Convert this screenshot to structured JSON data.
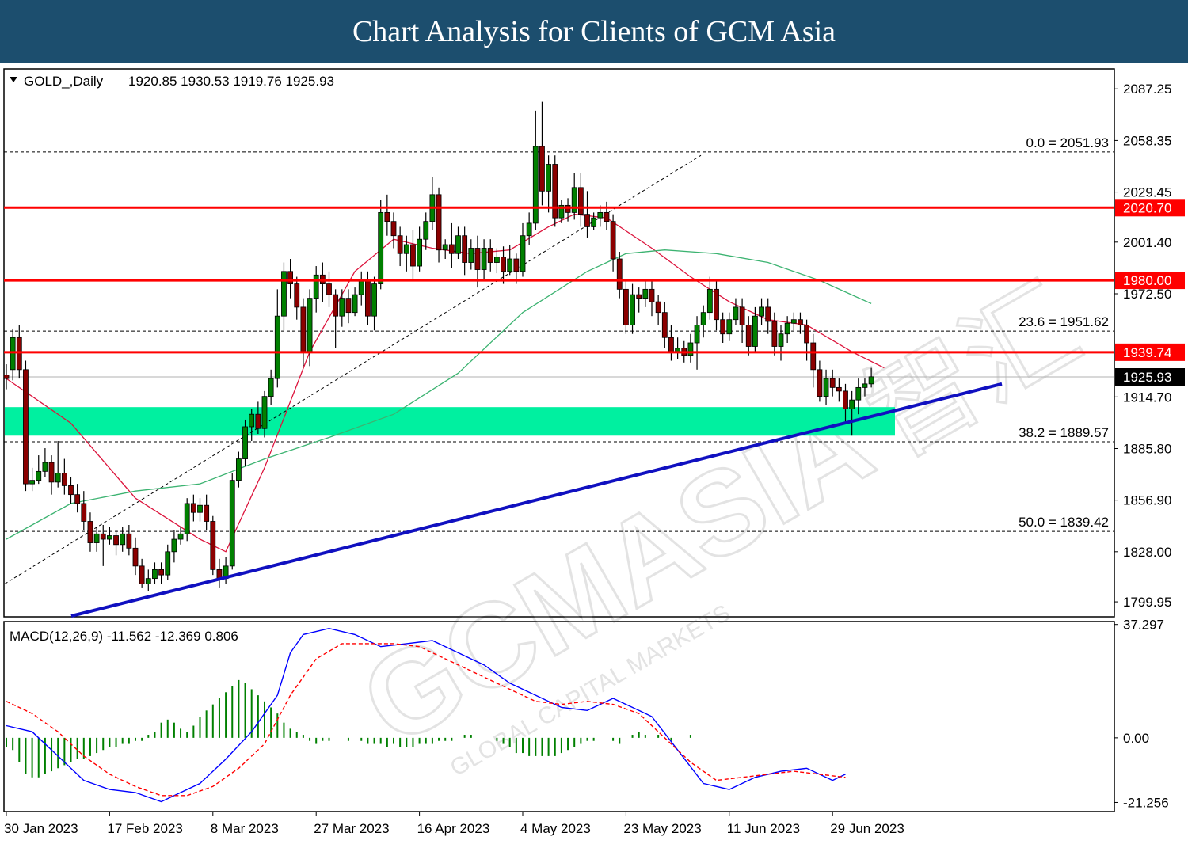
{
  "banner": {
    "title": "Chart Analysis for Clients of GCM Asia"
  },
  "watermark": {
    "brand": "GCMASIA",
    "chinese": "智汇",
    "tagline": "GLOBAL CAPITAL MARKETS"
  },
  "colors": {
    "banner": "#1c4e6e",
    "bull": "#008000",
    "bear": "#8b0000",
    "level": "#ff0000",
    "zone": "#00f0a0",
    "trend": "#1010c0",
    "ma_fast": "#dc143c",
    "ma_slow": "#3cb371",
    "macd": "#0000ff",
    "signal": "#ff0000",
    "hist": "#008000"
  },
  "main_header": {
    "symbol": "GOLD_,Daily",
    "ohlc": "1920.85 1930.53 1919.76 1925.93"
  },
  "chart_data": [
    {
      "type": "candlestick",
      "title": "GOLD_,Daily",
      "ylim": [
        1792,
        2098
      ],
      "y_ticks": [
        "2087.25",
        "2058.35",
        "2029.45",
        "2001.40",
        "1972.50",
        "1914.70",
        "1885.80",
        "1856.90",
        "1828.00",
        "1799.95"
      ],
      "x_labels": [
        "30 Jan 2023",
        "17 Feb 2023",
        "8 Mar 2023",
        "27 Mar 2023",
        "16 Apr 2023",
        "4 May 2023",
        "23 May 2023",
        "11 Jun 2023",
        "29 Jun 2023"
      ],
      "levels": [
        {
          "value": 2020.7,
          "label": "2020.70"
        },
        {
          "value": 1980.0,
          "label": "1980.00"
        },
        {
          "value": 1939.74,
          "label": "1939.74"
        }
      ],
      "current_price": {
        "value": 1925.93,
        "label": "1925.93"
      },
      "fibonacci": [
        {
          "value": 2051.93,
          "label": "0.0 = 2051.93"
        },
        {
          "value": 1951.62,
          "label": "23.6 = 1951.62"
        },
        {
          "value": 1889.57,
          "label": "38.2 = 1889.57"
        },
        {
          "value": 1839.42,
          "label": "50.0 = 1839.42"
        }
      ],
      "support_zone": [
        1893,
        1909
      ],
      "candles": [
        [
          1927,
          1925,
          1933,
          1919
        ],
        [
          1930,
          1948,
          1953,
          1924
        ],
        [
          1948,
          1930,
          1955,
          1925
        ],
        [
          1930,
          1866,
          1935,
          1862
        ],
        [
          1866,
          1868,
          1875,
          1862
        ],
        [
          1868,
          1873,
          1882,
          1866
        ],
        [
          1873,
          1878,
          1886,
          1870
        ],
        [
          1878,
          1867,
          1882,
          1860
        ],
        [
          1867,
          1872,
          1890,
          1864
        ],
        [
          1872,
          1865,
          1880,
          1860
        ],
        [
          1865,
          1860,
          1870,
          1855
        ],
        [
          1860,
          1855,
          1866,
          1850
        ],
        [
          1855,
          1845,
          1862,
          1840
        ],
        [
          1845,
          1833,
          1850,
          1828
        ],
        [
          1833,
          1838,
          1842,
          1828
        ],
        [
          1838,
          1835,
          1843,
          1820
        ],
        [
          1835,
          1837,
          1842,
          1832
        ],
        [
          1837,
          1832,
          1840,
          1826
        ],
        [
          1832,
          1838,
          1842,
          1828
        ],
        [
          1838,
          1830,
          1843,
          1826
        ],
        [
          1830,
          1820,
          1836,
          1815
        ],
        [
          1820,
          1810,
          1824,
          1808
        ],
        [
          1810,
          1813,
          1818,
          1806
        ],
        [
          1813,
          1818,
          1822,
          1810
        ],
        [
          1818,
          1815,
          1822,
          1810
        ],
        [
          1815,
          1828,
          1832,
          1812
        ],
        [
          1828,
          1835,
          1840,
          1822
        ],
        [
          1835,
          1838,
          1842,
          1832
        ],
        [
          1838,
          1855,
          1858,
          1834
        ],
        [
          1855,
          1850,
          1860,
          1845
        ],
        [
          1850,
          1854,
          1858,
          1845
        ],
        [
          1854,
          1845,
          1860,
          1840
        ],
        [
          1845,
          1818,
          1848,
          1815
        ],
        [
          1818,
          1813,
          1824,
          1808
        ],
        [
          1813,
          1820,
          1825,
          1810
        ],
        [
          1820,
          1868,
          1872,
          1818
        ],
        [
          1868,
          1880,
          1884,
          1864
        ],
        [
          1880,
          1898,
          1902,
          1876
        ],
        [
          1898,
          1905,
          1908,
          1890
        ],
        [
          1905,
          1897,
          1912,
          1894
        ],
        [
          1897,
          1915,
          1918,
          1892
        ],
        [
          1915,
          1925,
          1930,
          1910
        ],
        [
          1925,
          1960,
          1975,
          1920
        ],
        [
          1960,
          1985,
          1990,
          1952
        ],
        [
          1985,
          1978,
          1992,
          1970
        ],
        [
          1978,
          1965,
          1982,
          1958
        ],
        [
          1965,
          1940,
          1970,
          1932
        ],
        [
          1940,
          1970,
          1975,
          1932
        ],
        [
          1970,
          1983,
          1988,
          1962
        ],
        [
          1983,
          1978,
          1990,
          1968
        ],
        [
          1978,
          1972,
          1985,
          1965
        ],
        [
          1972,
          1960,
          1975,
          1942
        ],
        [
          1960,
          1970,
          1975,
          1954
        ],
        [
          1970,
          1962,
          1975,
          1956
        ],
        [
          1962,
          1972,
          1976,
          1960
        ],
        [
          1972,
          1980,
          1985,
          1966
        ],
        [
          1980,
          1960,
          1985,
          1955
        ],
        [
          1960,
          1978,
          1982,
          1952
        ],
        [
          1978,
          2018,
          2025,
          1975
        ],
        [
          2018,
          2013,
          2028,
          2005
        ],
        [
          2013,
          2005,
          2018,
          1998
        ],
        [
          2005,
          1995,
          2010,
          1988
        ],
        [
          1995,
          2000,
          2005,
          1985
        ],
        [
          2000,
          1988,
          2008,
          1980
        ],
        [
          1988,
          2003,
          2010,
          1985
        ],
        [
          2003,
          2013,
          2018,
          1997
        ],
        [
          2013,
          2028,
          2038,
          2008
        ],
        [
          2028,
          1997,
          2032,
          1990
        ],
        [
          1997,
          2000,
          2003,
          1992
        ],
        [
          2000,
          1995,
          2012,
          1987
        ],
        [
          1995,
          2005,
          2010,
          1992
        ],
        [
          2005,
          1990,
          2010,
          1983
        ],
        [
          1990,
          1998,
          2003,
          1986
        ],
        [
          1998,
          1986,
          2005,
          1976
        ],
        [
          1986,
          1998,
          2003,
          1980
        ],
        [
          1998,
          1990,
          2003,
          1985
        ],
        [
          1990,
          1993,
          1998,
          1984
        ],
        [
          1993,
          1985,
          1999,
          1978
        ],
        [
          1985,
          1992,
          2000,
          1983
        ],
        [
          1992,
          1985,
          1995,
          1978
        ],
        [
          1985,
          2005,
          2012,
          1982
        ],
        [
          2005,
          2012,
          2018,
          2000
        ],
        [
          2012,
          2055,
          2075,
          2008
        ],
        [
          2055,
          2030,
          2080,
          2022
        ],
        [
          2030,
          2045,
          2050,
          2018
        ],
        [
          2045,
          2015,
          2050,
          2010
        ],
        [
          2015,
          2022,
          2025,
          2012
        ],
        [
          2022,
          2018,
          2026,
          2013
        ],
        [
          2018,
          2032,
          2040,
          2014
        ],
        [
          2032,
          2017,
          2040,
          2010
        ],
        [
          2017,
          2010,
          2030,
          2004
        ],
        [
          2010,
          2015,
          2018,
          2008
        ],
        [
          2015,
          2018,
          2022,
          2010
        ],
        [
          2018,
          2013,
          2024,
          2008
        ],
        [
          2013,
          1992,
          2017,
          1985
        ],
        [
          1992,
          1975,
          1996,
          1970
        ],
        [
          1975,
          1955,
          1980,
          1950
        ],
        [
          1955,
          1972,
          1978,
          1950
        ],
        [
          1972,
          1970,
          1976,
          1962
        ],
        [
          1970,
          1975,
          1980,
          1965
        ],
        [
          1975,
          1968,
          1980,
          1960
        ],
        [
          1968,
          1962,
          1972,
          1955
        ],
        [
          1962,
          1948,
          1968,
          1942
        ],
        [
          1948,
          1940,
          1955,
          1935
        ],
        [
          1940,
          1942,
          1948,
          1936
        ],
        [
          1942,
          1938,
          1946,
          1934
        ],
        [
          1938,
          1945,
          1950,
          1934
        ],
        [
          1945,
          1955,
          1960,
          1930
        ],
        [
          1955,
          1962,
          1966,
          1948
        ],
        [
          1962,
          1975,
          1982,
          1958
        ],
        [
          1975,
          1958,
          1980,
          1952
        ],
        [
          1958,
          1950,
          1962,
          1945
        ],
        [
          1950,
          1958,
          1962,
          1946
        ],
        [
          1958,
          1965,
          1970,
          1955
        ],
        [
          1965,
          1955,
          1970,
          1945
        ],
        [
          1955,
          1943,
          1960,
          1938
        ],
        [
          1943,
          1960,
          1965,
          1940
        ],
        [
          1960,
          1965,
          1970,
          1955
        ],
        [
          1965,
          1957,
          1970,
          1950
        ],
        [
          1957,
          1943,
          1962,
          1938
        ],
        [
          1943,
          1950,
          1955,
          1935
        ],
        [
          1950,
          1956,
          1960,
          1945
        ],
        [
          1956,
          1958,
          1962,
          1952
        ],
        [
          1958,
          1955,
          1962,
          1950
        ],
        [
          1955,
          1945,
          1958,
          1935
        ],
        [
          1945,
          1930,
          1950,
          1920
        ],
        [
          1930,
          1915,
          1935,
          1912
        ],
        [
          1915,
          1925,
          1930,
          1910
        ],
        [
          1925,
          1920,
          1930,
          1915
        ],
        [
          1920,
          1918,
          1925,
          1912
        ],
        [
          1918,
          1908,
          1922,
          1900
        ],
        [
          1908,
          1913,
          1918,
          1893
        ],
        [
          1913,
          1920,
          1925,
          1905
        ],
        [
          1920,
          1922,
          1925,
          1915
        ],
        [
          1922,
          1926,
          1931,
          1920
        ]
      ],
      "series": [
        {
          "name": "",
          "x": [
            0,
            10,
            20,
            30,
            34,
            40,
            47,
            54,
            60,
            66,
            72,
            78,
            84,
            88,
            93,
            100,
            106,
            112,
            118,
            124,
            131,
            136
          ],
          "values": [
            1925,
            1900,
            1858,
            1835,
            1828,
            1875,
            1940,
            1985,
            2003,
            1998,
            1995,
            1997,
            2010,
            2017,
            2015,
            1998,
            1982,
            1968,
            1958,
            1955,
            1940,
            1931
          ]
        },
        {
          "name": "",
          "x": [
            0,
            10,
            20,
            30,
            40,
            50,
            60,
            70,
            80,
            90,
            96,
            102,
            110,
            118,
            126,
            134
          ],
          "values": [
            1835,
            1855,
            1862,
            1866,
            1880,
            1892,
            1905,
            1928,
            1962,
            1985,
            1995,
            1997,
            1995,
            1990,
            1980,
            1967
          ]
        }
      ]
    },
    {
      "type": "bar",
      "title": "MACD(12,26,9) -11.562 -12.369 0.806",
      "ylim": [
        -24,
        38
      ],
      "y_ticks": [
        "37.297",
        "0.00",
        "-21.256"
      ],
      "histogram": [
        -3,
        -4,
        -8,
        -12,
        -13,
        -13,
        -12,
        -11,
        -10,
        -9,
        -8,
        -7,
        -7,
        -6,
        -5,
        -4,
        -3,
        -3,
        -2,
        -2,
        -1,
        -1,
        1,
        2,
        5,
        6,
        5,
        3,
        2,
        4,
        7,
        9,
        11,
        13,
        15,
        17,
        19,
        18,
        16,
        14,
        12,
        10,
        8,
        5,
        3,
        2,
        1,
        -1,
        -2,
        -1,
        -1,
        0,
        0,
        -1,
        0,
        -1,
        -2,
        -2,
        -2,
        -3,
        -2,
        -3,
        -3,
        -3,
        -2,
        -2,
        -2,
        -1,
        -1,
        -1,
        0,
        1,
        1,
        0,
        0,
        0,
        -1,
        -2,
        -3,
        -5,
        -5,
        -6,
        -6,
        -6,
        -6,
        -6,
        -5,
        -4,
        -3,
        -2,
        -1,
        -1,
        0,
        0,
        -1,
        -2,
        0,
        1,
        2,
        1,
        0,
        1,
        0,
        -1,
        0,
        0,
        1,
        0
      ],
      "series": [
        {
          "name": "MACD",
          "x": [
            0,
            4,
            8,
            12,
            16,
            20,
            24,
            28,
            30,
            34,
            38,
            42,
            44,
            46,
            50,
            54,
            58,
            62,
            66,
            70,
            72,
            74,
            78,
            82,
            86,
            90,
            92,
            94,
            98,
            100,
            104,
            108,
            112,
            116,
            120,
            124,
            128,
            130
          ],
          "values": [
            4,
            2,
            -6,
            -14,
            -17,
            -18,
            -21,
            -17,
            -15,
            -7,
            2,
            14,
            28,
            34,
            36,
            34,
            30,
            31,
            32,
            28,
            26,
            24,
            18,
            14,
            10,
            9,
            11,
            13,
            9,
            7,
            -4,
            -15,
            -17,
            -13,
            -11,
            -10,
            -14,
            -12
          ]
        },
        {
          "name": "Signal",
          "x": [
            0,
            4,
            8,
            12,
            16,
            20,
            24,
            28,
            32,
            36,
            40,
            44,
            48,
            52,
            56,
            60,
            64,
            66,
            70,
            74,
            78,
            82,
            86,
            90,
            94,
            98,
            102,
            106,
            110,
            114,
            118,
            122,
            126,
            130
          ],
          "values": [
            12,
            8,
            2,
            -6,
            -12,
            -16,
            -19,
            -19,
            -16,
            -10,
            -2,
            14,
            26,
            31,
            31,
            31,
            30,
            28,
            24,
            20,
            16,
            12,
            11,
            12,
            11,
            8,
            0,
            -8,
            -14,
            -13,
            -12,
            -11,
            -12,
            -13
          ]
        }
      ]
    }
  ]
}
